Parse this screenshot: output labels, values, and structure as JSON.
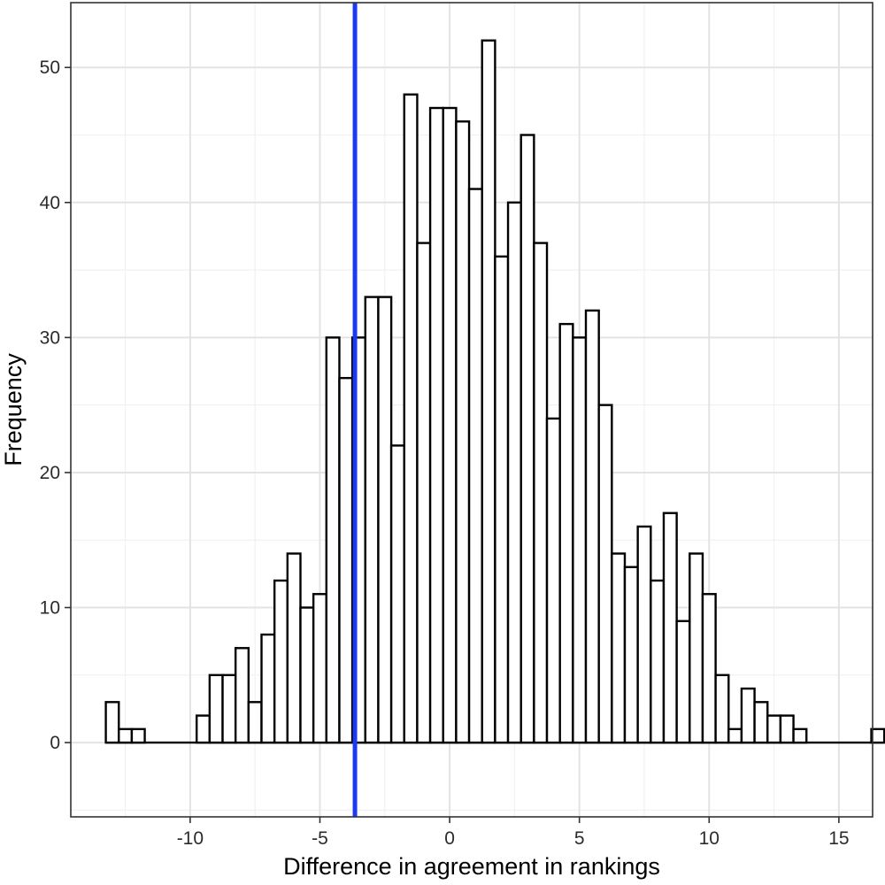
{
  "chart_data": {
    "type": "bar",
    "subtype": "histogram",
    "title": "",
    "xlabel": "Difference in agreement in rankings",
    "ylabel": "Frequency",
    "xlim": [
      -14.6,
      16.3
    ],
    "ylim": [
      -5.5,
      54.8
    ],
    "x_ticks": [
      -10,
      -5,
      0,
      5,
      10,
      15
    ],
    "x_tick_labels": [
      "-10",
      "-5",
      "0",
      "5",
      "10",
      "15"
    ],
    "y_ticks": [
      0,
      10,
      20,
      30,
      40,
      50
    ],
    "y_tick_labels": [
      "0",
      "10",
      "20",
      "30",
      "40",
      "50"
    ],
    "bin_width": 0.5,
    "bin_start": -13.25,
    "values": [
      3,
      1,
      1,
      0,
      0,
      0,
      0,
      2,
      5,
      5,
      7,
      3,
      8,
      12,
      14,
      10,
      11,
      30,
      27,
      30,
      33,
      33,
      22,
      48,
      37,
      47,
      47,
      46,
      41,
      52,
      36,
      40,
      45,
      37,
      24,
      31,
      30,
      32,
      25,
      14,
      13,
      16,
      12,
      17,
      9,
      14,
      11,
      5,
      1,
      4,
      3,
      2,
      2,
      1,
      0,
      0,
      0,
      0,
      0,
      1
    ],
    "reference_line": {
      "x": -3.65,
      "color": "#1a3cf0"
    },
    "grid": true,
    "legend": "none",
    "colors": {
      "bar_fill": "#ffffff",
      "bar_edge": "#000000",
      "background": "#ffffff"
    }
  }
}
